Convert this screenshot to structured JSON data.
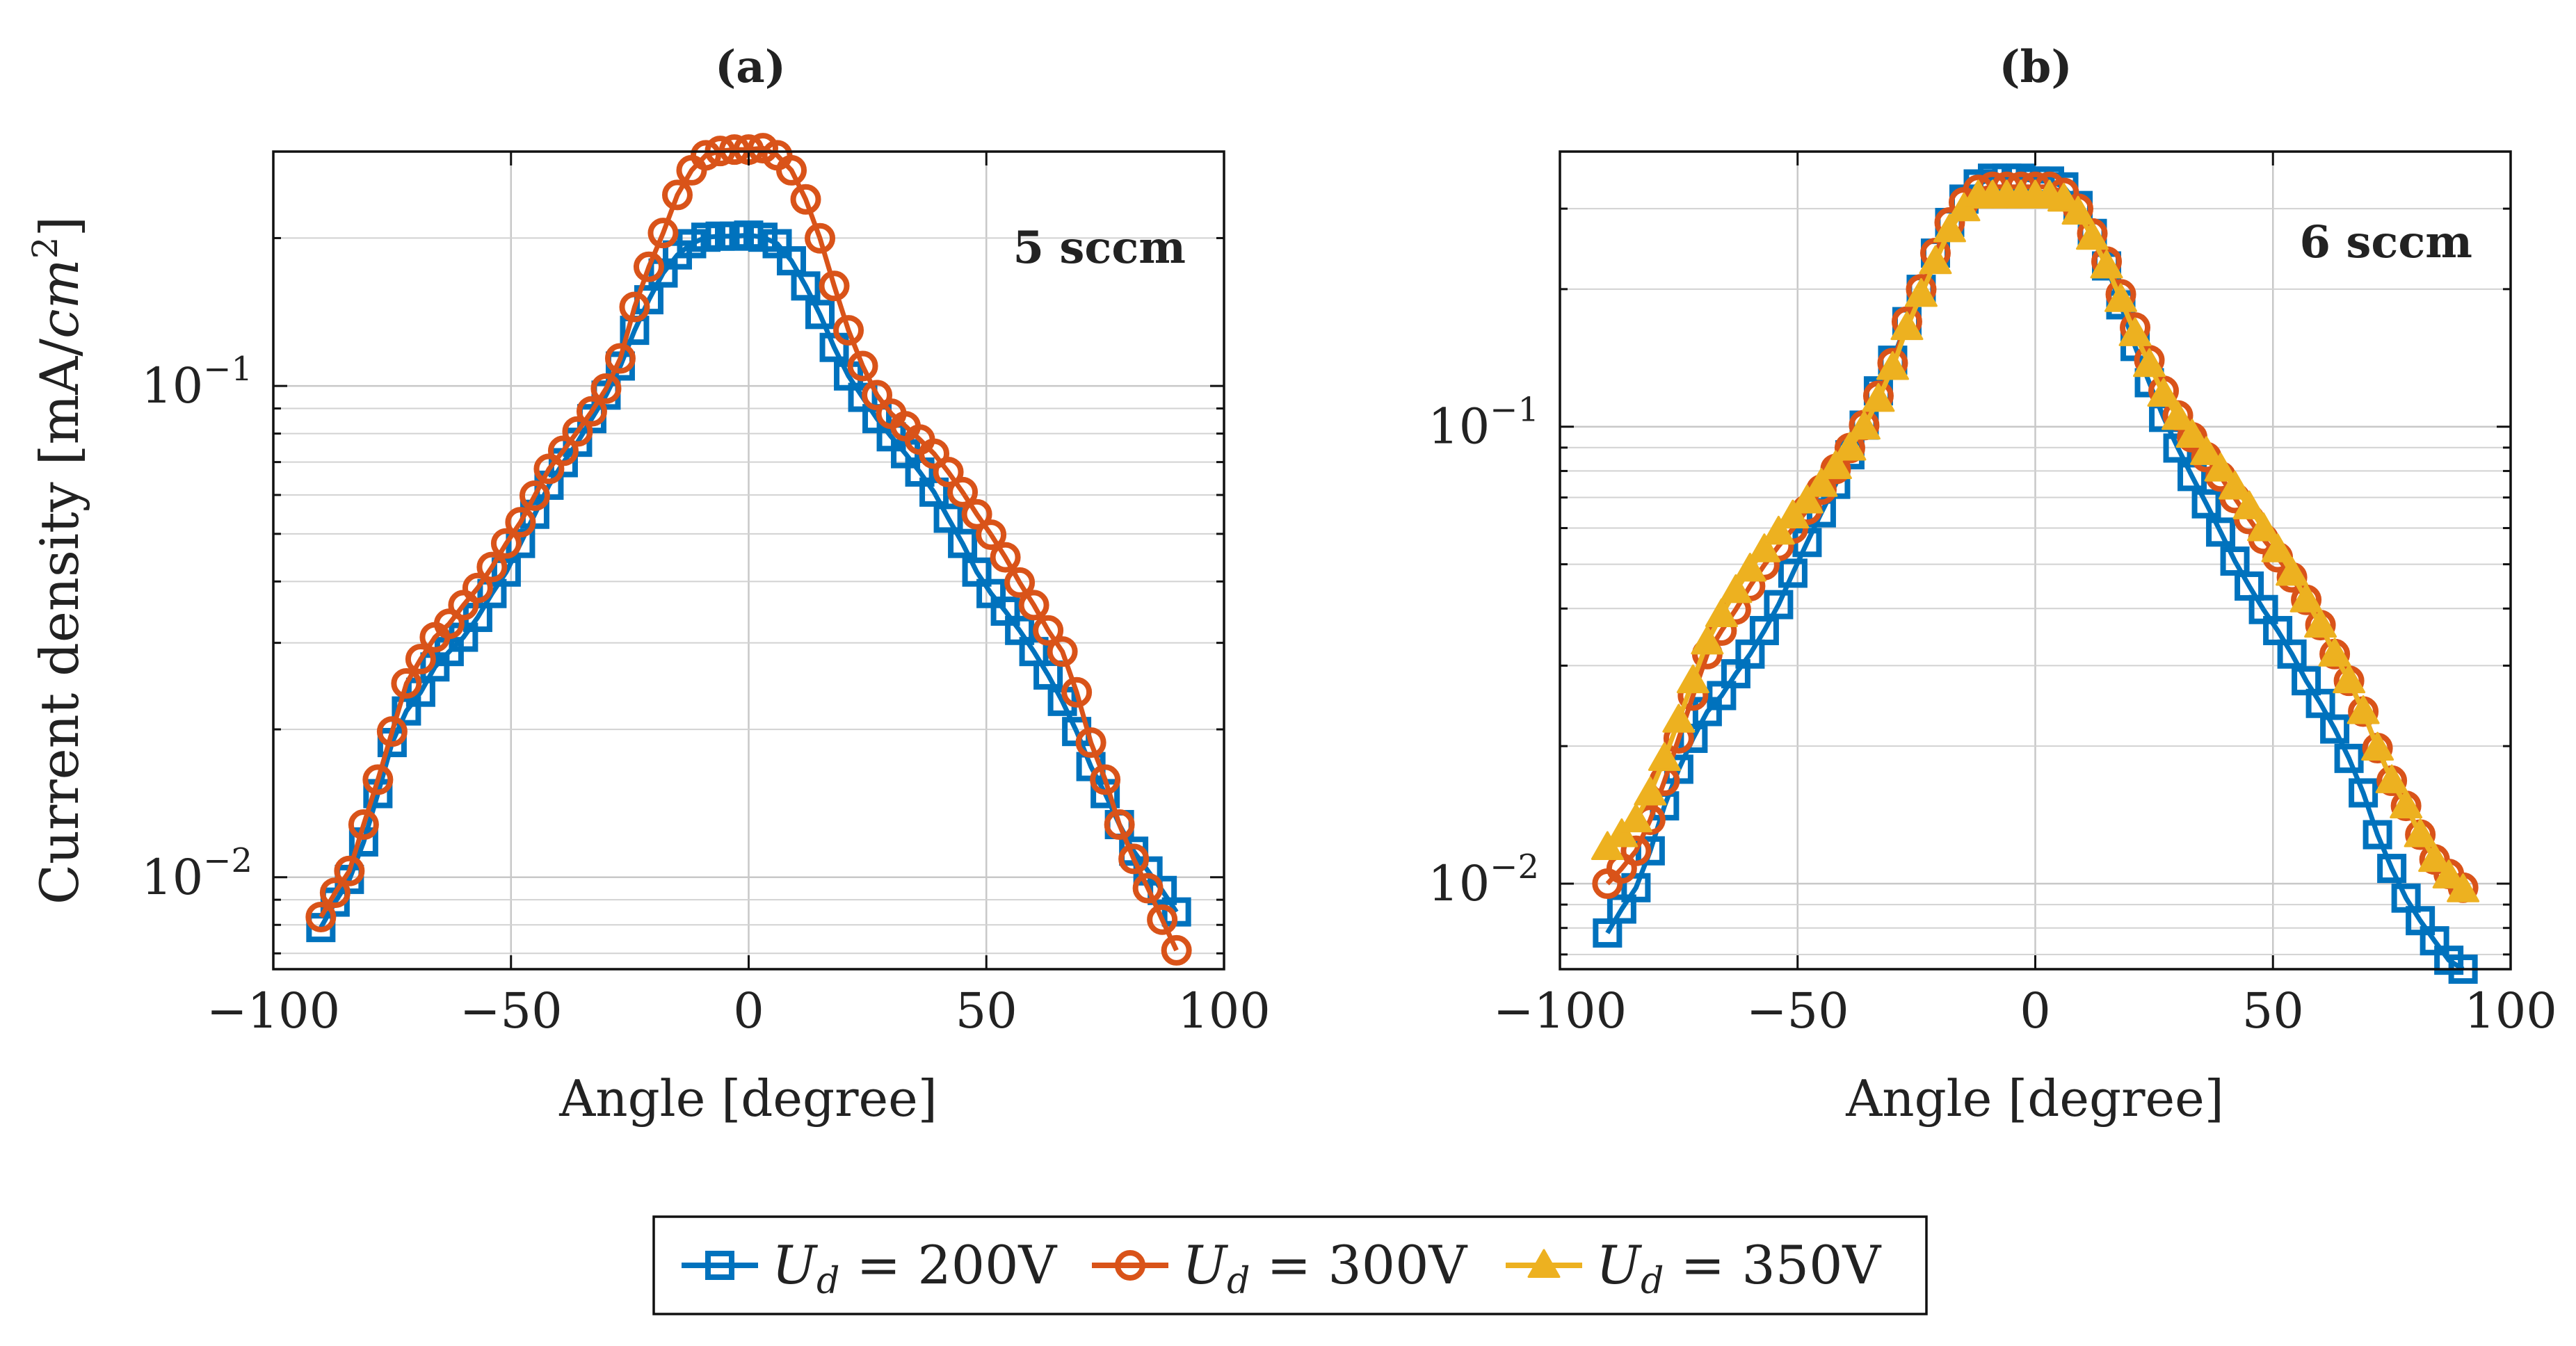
{
  "chart_data": [
    {
      "type": "line",
      "panel": "a",
      "title": "(a)",
      "annotation": "5 sccm",
      "xlabel": "Angle [degree]",
      "ylabel": "Current density [mA/cm²]",
      "xlim": [
        -100,
        100
      ],
      "ylim": [
        0.0065,
        0.3
      ],
      "yscale": "log",
      "xticks": [
        "−100",
        "−50",
        "0",
        "50",
        "100"
      ],
      "xtick_values": [
        -100,
        -50,
        0,
        50,
        100
      ],
      "yticks": [
        {
          "base": "10",
          "exp": "−1",
          "value": 0.1
        },
        {
          "base": "10",
          "exp": "−2",
          "value": 0.01
        }
      ],
      "grid": true,
      "series": [
        {
          "name": "U_d = 200V",
          "color": "#0072bd",
          "marker": "square",
          "x": [
            -90,
            -87,
            -84,
            -81,
            -78,
            -75,
            -72,
            -69,
            -66,
            -63,
            -60,
            -57,
            -54,
            -51,
            -48,
            -45,
            -42,
            -39,
            -36,
            -33,
            -30,
            -27,
            -24,
            -21,
            -18,
            -15,
            -12,
            -9,
            -6,
            -3,
            0,
            3,
            6,
            9,
            12,
            15,
            18,
            21,
            24,
            27,
            30,
            33,
            36,
            39,
            42,
            45,
            48,
            51,
            54,
            57,
            60,
            63,
            66,
            69,
            72,
            75,
            78,
            81,
            84,
            87,
            90
          ],
          "y": [
            0.0079,
            0.0089,
            0.0099,
            0.0118,
            0.0148,
            0.0188,
            0.0218,
            0.0238,
            0.0268,
            0.0288,
            0.0308,
            0.0338,
            0.0378,
            0.0418,
            0.0478,
            0.0548,
            0.0628,
            0.0698,
            0.0768,
            0.0858,
            0.0958,
            0.1098,
            0.1298,
            0.1498,
            0.1698,
            0.1848,
            0.1948,
            0.2008,
            0.2018,
            0.2018,
            0.2028,
            0.2008,
            0.1948,
            0.1798,
            0.1598,
            0.1398,
            0.1198,
            0.1048,
            0.0948,
            0.0858,
            0.0788,
            0.0728,
            0.0668,
            0.0608,
            0.0538,
            0.0478,
            0.0418,
            0.0378,
            0.0348,
            0.0318,
            0.0288,
            0.0258,
            0.0228,
            0.0198,
            0.0168,
            0.0148,
            0.0128,
            0.0113,
            0.0103,
            0.0094,
            0.0085
          ]
        },
        {
          "name": "U_d = 300V",
          "color": "#d95319",
          "marker": "circle",
          "x": [
            -90,
            -87,
            -84,
            -81,
            -78,
            -75,
            -72,
            -69,
            -66,
            -63,
            -60,
            -57,
            -54,
            -51,
            -48,
            -45,
            -42,
            -39,
            -36,
            -33,
            -30,
            -27,
            -24,
            -21,
            -18,
            -15,
            -12,
            -9,
            -6,
            -3,
            0,
            3,
            6,
            9,
            12,
            15,
            18,
            21,
            24,
            27,
            30,
            33,
            36,
            39,
            42,
            45,
            48,
            51,
            54,
            57,
            60,
            63,
            66,
            69,
            72,
            75,
            78,
            81,
            84,
            87,
            90
          ],
          "y": [
            0.0083,
            0.0093,
            0.0103,
            0.0128,
            0.0158,
            0.0198,
            0.0248,
            0.0278,
            0.0308,
            0.0328,
            0.0358,
            0.0388,
            0.0428,
            0.0478,
            0.0528,
            0.0598,
            0.0678,
            0.0738,
            0.0808,
            0.0888,
            0.0988,
            0.1138,
            0.1448,
            0.1748,
            0.2048,
            0.2448,
            0.2748,
            0.2948,
            0.3008,
            0.3028,
            0.3028,
            0.3048,
            0.2948,
            0.2748,
            0.2398,
            0.1998,
            0.1598,
            0.1298,
            0.1098,
            0.0958,
            0.0878,
            0.0828,
            0.0778,
            0.0728,
            0.0668,
            0.0608,
            0.0548,
            0.0498,
            0.0448,
            0.0398,
            0.0358,
            0.0318,
            0.0288,
            0.0238,
            0.0188,
            0.0158,
            0.0128,
            0.0109,
            0.0095,
            0.0082,
            0.0071
          ]
        }
      ]
    },
    {
      "type": "line",
      "panel": "b",
      "title": "(b)",
      "annotation": "6 sccm",
      "xlabel": "Angle [degree]",
      "xlim": [
        -100,
        100
      ],
      "ylim": [
        0.0065,
        0.4
      ],
      "yscale": "log",
      "xticks": [
        "−100",
        "−50",
        "0",
        "50",
        "100"
      ],
      "xtick_values": [
        -100,
        -50,
        0,
        50,
        100
      ],
      "yticks": [
        {
          "base": "10",
          "exp": "−1",
          "value": 0.1
        },
        {
          "base": "10",
          "exp": "−2",
          "value": 0.01
        }
      ],
      "grid": true,
      "series": [
        {
          "name": "U_d = 200V",
          "color": "#0072bd",
          "marker": "square",
          "x": [
            -90,
            -87,
            -84,
            -81,
            -78,
            -75,
            -72,
            -69,
            -66,
            -63,
            -60,
            -57,
            -54,
            -51,
            -48,
            -45,
            -42,
            -39,
            -36,
            -33,
            -30,
            -27,
            -24,
            -21,
            -18,
            -15,
            -12,
            -9,
            -6,
            -3,
            0,
            3,
            6,
            9,
            12,
            15,
            18,
            21,
            24,
            27,
            30,
            33,
            36,
            39,
            42,
            45,
            48,
            51,
            54,
            57,
            60,
            63,
            66,
            69,
            72,
            75,
            78,
            81,
            84,
            87,
            90
          ],
          "y": [
            0.0078,
            0.0088,
            0.0098,
            0.0118,
            0.0148,
            0.0178,
            0.0208,
            0.0238,
            0.0258,
            0.0288,
            0.0318,
            0.0358,
            0.0408,
            0.0478,
            0.0558,
            0.0648,
            0.0748,
            0.0868,
            0.1008,
            0.1198,
            0.1398,
            0.1698,
            0.1998,
            0.2398,
            0.2798,
            0.3148,
            0.3398,
            0.3498,
            0.3498,
            0.3498,
            0.3448,
            0.3448,
            0.3348,
            0.3048,
            0.2648,
            0.2248,
            0.1848,
            0.1498,
            0.1248,
            0.1048,
            0.0898,
            0.0778,
            0.0678,
            0.0588,
            0.0508,
            0.0448,
            0.0398,
            0.0358,
            0.0318,
            0.0278,
            0.0248,
            0.0218,
            0.0188,
            0.0158,
            0.0128,
            0.0108,
            0.0093,
            0.0083,
            0.0075,
            0.0068,
            0.0065
          ]
        },
        {
          "name": "U_d = 300V",
          "color": "#d95319",
          "marker": "circle",
          "x": [
            -90,
            -87,
            -84,
            -81,
            -78,
            -75,
            -72,
            -69,
            -66,
            -63,
            -60,
            -57,
            -54,
            -51,
            -48,
            -45,
            -42,
            -39,
            -36,
            -33,
            -30,
            -27,
            -24,
            -21,
            -18,
            -15,
            -12,
            -9,
            -6,
            -3,
            0,
            3,
            6,
            9,
            12,
            15,
            18,
            21,
            24,
            27,
            30,
            33,
            36,
            39,
            42,
            45,
            48,
            51,
            54,
            57,
            60,
            63,
            66,
            69,
            72,
            75,
            78,
            81,
            84,
            87,
            90
          ],
          "y": [
            0.01,
            0.0108,
            0.0118,
            0.0138,
            0.0168,
            0.0208,
            0.0258,
            0.0318,
            0.0358,
            0.0398,
            0.0448,
            0.0498,
            0.0548,
            0.0598,
            0.0658,
            0.0728,
            0.0808,
            0.0898,
            0.1008,
            0.1168,
            0.1378,
            0.1698,
            0.1998,
            0.2398,
            0.2798,
            0.3098,
            0.3298,
            0.3348,
            0.3348,
            0.3348,
            0.3348,
            0.3348,
            0.3248,
            0.2998,
            0.2648,
            0.2298,
            0.1948,
            0.1648,
            0.1398,
            0.1198,
            0.1058,
            0.0948,
            0.0858,
            0.0778,
            0.0698,
            0.0628,
            0.0568,
            0.0518,
            0.0468,
            0.0418,
            0.0368,
            0.0318,
            0.0278,
            0.0238,
            0.0198,
            0.0168,
            0.0148,
            0.0128,
            0.0113,
            0.0105,
            0.0098
          ]
        },
        {
          "name": "U_d = 350V",
          "color": "#edb120",
          "marker": "triangle",
          "x": [
            -90,
            -87,
            -84,
            -81,
            -78,
            -75,
            -72,
            -69,
            -66,
            -63,
            -60,
            -57,
            -54,
            -51,
            -48,
            -45,
            -42,
            -39,
            -36,
            -33,
            -30,
            -27,
            -24,
            -21,
            -18,
            -15,
            -12,
            -9,
            -6,
            -3,
            0,
            3,
            6,
            9,
            12,
            15,
            18,
            21,
            24,
            27,
            30,
            33,
            36,
            39,
            42,
            45,
            48,
            51,
            54,
            57,
            60,
            63,
            66,
            69,
            72,
            75,
            78,
            81,
            84,
            87,
            90
          ],
          "y": [
            0.012,
            0.0128,
            0.0138,
            0.0158,
            0.0188,
            0.0228,
            0.0278,
            0.0338,
            0.0388,
            0.0438,
            0.0488,
            0.0538,
            0.0588,
            0.0638,
            0.0688,
            0.0748,
            0.0818,
            0.0898,
            0.0998,
            0.1148,
            0.1348,
            0.1648,
            0.1948,
            0.2298,
            0.2698,
            0.2998,
            0.3198,
            0.3198,
            0.3198,
            0.3198,
            0.3198,
            0.3198,
            0.3148,
            0.2948,
            0.2598,
            0.2248,
            0.1898,
            0.1598,
            0.1368,
            0.1178,
            0.1048,
            0.0958,
            0.0878,
            0.0808,
            0.0738,
            0.0668,
            0.0598,
            0.0538,
            0.0478,
            0.0418,
            0.0368,
            0.0318,
            0.0278,
            0.0238,
            0.0198,
            0.0168,
            0.0148,
            0.0128,
            0.0113,
            0.0104,
            0.0097
          ]
        }
      ]
    }
  ],
  "legend": {
    "placement": "bottom-center",
    "entries": [
      {
        "label_base": "U",
        "label_sub": "d",
        "label_rest": " = 200V",
        "color": "#0072bd",
        "marker": "square"
      },
      {
        "label_base": "U",
        "label_sub": "d",
        "label_rest": " = 300V",
        "color": "#d95319",
        "marker": "circle"
      },
      {
        "label_base": "U",
        "label_sub": "d",
        "label_rest": " = 350V",
        "color": "#edb120",
        "marker": "triangle"
      }
    ]
  },
  "ylabel_parts": {
    "prefix": "Current density [mA/",
    "italic": "cm",
    "sup": "2",
    "suffix": "]"
  }
}
